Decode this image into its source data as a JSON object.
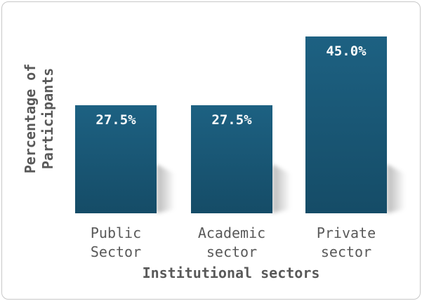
{
  "chart_data": {
    "type": "bar",
    "categories": [
      [
        "Public",
        "Sector"
      ],
      [
        "Academic",
        "sector"
      ],
      [
        "Private",
        "sector"
      ]
    ],
    "values": [
      27.5,
      27.5,
      45.0
    ],
    "value_labels": [
      "27.5%",
      "27.5%",
      "45.0%"
    ],
    "xlabel": "Institutional sectors",
    "ylabel": [
      "Percentage of",
      "Participants"
    ],
    "ylim": [
      0,
      50
    ],
    "grid": false,
    "legend": "none",
    "colors": {
      "bar": "#1d6182",
      "bar_dark": "#154c67",
      "text": "#595959"
    }
  }
}
